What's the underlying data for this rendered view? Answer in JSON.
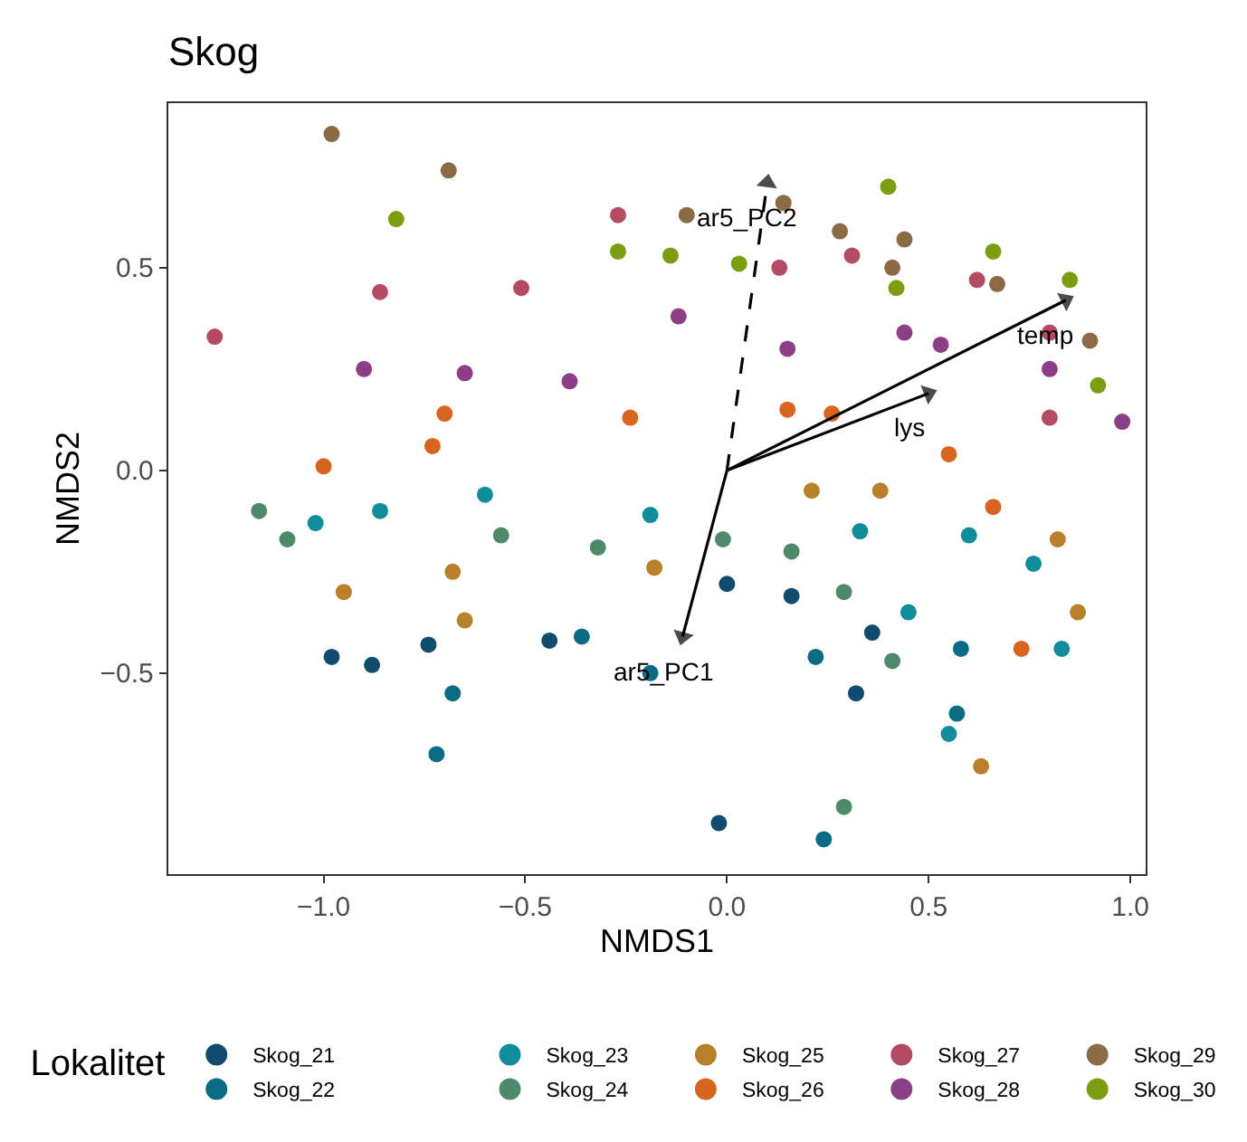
{
  "chart_data": {
    "type": "scatter",
    "title": "Skog",
    "xlabel": "NMDS1",
    "ylabel": "NMDS2",
    "legend_title": "Lokalitet",
    "legend": "bottom",
    "grid": false,
    "marker": "circle",
    "xlim": [
      -1.385,
      1.038
    ],
    "ylim": [
      -0.996,
      0.906
    ],
    "xticks": [
      {
        "value": -1.0,
        "label": "−1.0"
      },
      {
        "value": -0.5,
        "label": "−0.5"
      },
      {
        "value": 0.0,
        "label": "0.0"
      },
      {
        "value": 0.5,
        "label": "0.5"
      },
      {
        "value": 1.0,
        "label": "1.0"
      }
    ],
    "yticks": [
      {
        "value": -0.5,
        "label": "−0.5"
      },
      {
        "value": 0.0,
        "label": "0.0"
      },
      {
        "value": 0.5,
        "label": "0.5"
      }
    ],
    "series": [
      {
        "name": "Skog_21",
        "color": "#0f4c6e",
        "x": [
          -0.98,
          -0.88,
          -0.74,
          -0.44,
          0.0,
          0.16,
          0.36,
          0.32,
          -0.02
        ],
        "values": [
          -0.46,
          -0.48,
          -0.43,
          -0.42,
          -0.28,
          -0.31,
          -0.4,
          -0.55,
          -0.87
        ]
      },
      {
        "name": "Skog_22",
        "color": "#0a6b85",
        "x": [
          -0.36,
          -0.19,
          -0.68,
          -0.72,
          0.22,
          0.58,
          0.57,
          0.24
        ],
        "values": [
          -0.41,
          -0.5,
          -0.55,
          -0.7,
          -0.46,
          -0.44,
          -0.6,
          -0.91
        ]
      },
      {
        "name": "Skog_23",
        "color": "#0f8d9a",
        "x": [
          -0.6,
          -0.86,
          -1.02,
          -0.19,
          0.33,
          0.6,
          0.76,
          0.83,
          0.55,
          0.45
        ],
        "values": [
          -0.06,
          -0.1,
          -0.13,
          -0.11,
          -0.15,
          -0.16,
          -0.23,
          -0.44,
          -0.65,
          -0.35
        ]
      },
      {
        "name": "Skog_24",
        "color": "#4e8a6a",
        "x": [
          -1.16,
          -1.09,
          -0.56,
          -0.32,
          -0.01,
          0.16,
          0.29,
          0.41,
          0.29
        ],
        "values": [
          -0.1,
          -0.17,
          -0.16,
          -0.19,
          -0.17,
          -0.2,
          -0.3,
          -0.47,
          -0.83
        ]
      },
      {
        "name": "Skog_25",
        "color": "#b8802a",
        "x": [
          -0.95,
          -0.68,
          -0.65,
          -0.18,
          0.21,
          0.38,
          0.82,
          0.87,
          0.63
        ],
        "values": [
          -0.3,
          -0.25,
          -0.37,
          -0.24,
          -0.05,
          -0.05,
          -0.17,
          -0.35,
          -0.73
        ]
      },
      {
        "name": "Skog_26",
        "color": "#d8651f",
        "x": [
          -1.0,
          -0.73,
          -0.7,
          -0.24,
          0.15,
          0.26,
          0.55,
          0.66,
          0.73
        ],
        "values": [
          0.01,
          0.06,
          0.14,
          0.13,
          0.15,
          0.14,
          0.04,
          -0.09,
          -0.44
        ]
      },
      {
        "name": "Skog_27",
        "color": "#b44b63",
        "x": [
          -1.27,
          -0.86,
          -0.51,
          -0.27,
          0.13,
          0.31,
          0.62,
          0.8,
          0.8
        ],
        "values": [
          0.33,
          0.44,
          0.45,
          0.63,
          0.5,
          0.53,
          0.47,
          0.34,
          0.13
        ]
      },
      {
        "name": "Skog_28",
        "color": "#8c3f86",
        "x": [
          -0.9,
          -0.65,
          -0.39,
          -0.12,
          0.15,
          0.44,
          0.53,
          0.8,
          0.98
        ],
        "values": [
          0.25,
          0.24,
          0.22,
          0.38,
          0.3,
          0.34,
          0.31,
          0.25,
          0.12
        ]
      },
      {
        "name": "Skog_29",
        "color": "#8a6b45",
        "x": [
          -0.98,
          -0.69,
          -0.1,
          0.14,
          0.28,
          0.44,
          0.41,
          0.67,
          0.9
        ],
        "values": [
          0.83,
          0.74,
          0.63,
          0.66,
          0.59,
          0.57,
          0.5,
          0.46,
          0.32
        ]
      },
      {
        "name": "Skog_30",
        "color": "#7a9e10",
        "x": [
          -0.82,
          -0.27,
          -0.14,
          0.03,
          0.4,
          0.42,
          0.66,
          0.85,
          0.92
        ],
        "values": [
          0.62,
          0.54,
          0.53,
          0.51,
          0.7,
          0.45,
          0.54,
          0.47,
          0.21
        ]
      },
      {
        "name": "ar5_PC1",
        "type": "line",
        "marker": "triangle",
        "color": "#000000",
        "line_style": "solid",
        "x": [
          0,
          -0.11
        ],
        "values": [
          0,
          -0.41
        ]
      },
      {
        "name": "ar5_PC2",
        "type": "line",
        "marker": "triangle",
        "color": "#000000",
        "line_style": "dashed",
        "x": [
          0,
          0.1
        ],
        "values": [
          0,
          0.71
        ]
      },
      {
        "name": "lys",
        "type": "line",
        "marker": "triangle",
        "color": "#000000",
        "line_style": "solid",
        "x": [
          0,
          0.5
        ],
        "values": [
          0,
          0.19
        ]
      },
      {
        "name": "temp",
        "type": "line",
        "marker": "triangle",
        "color": "#000000",
        "line_style": "solid",
        "x": [
          0,
          0.84
        ],
        "values": [
          0,
          0.42
        ]
      }
    ]
  }
}
